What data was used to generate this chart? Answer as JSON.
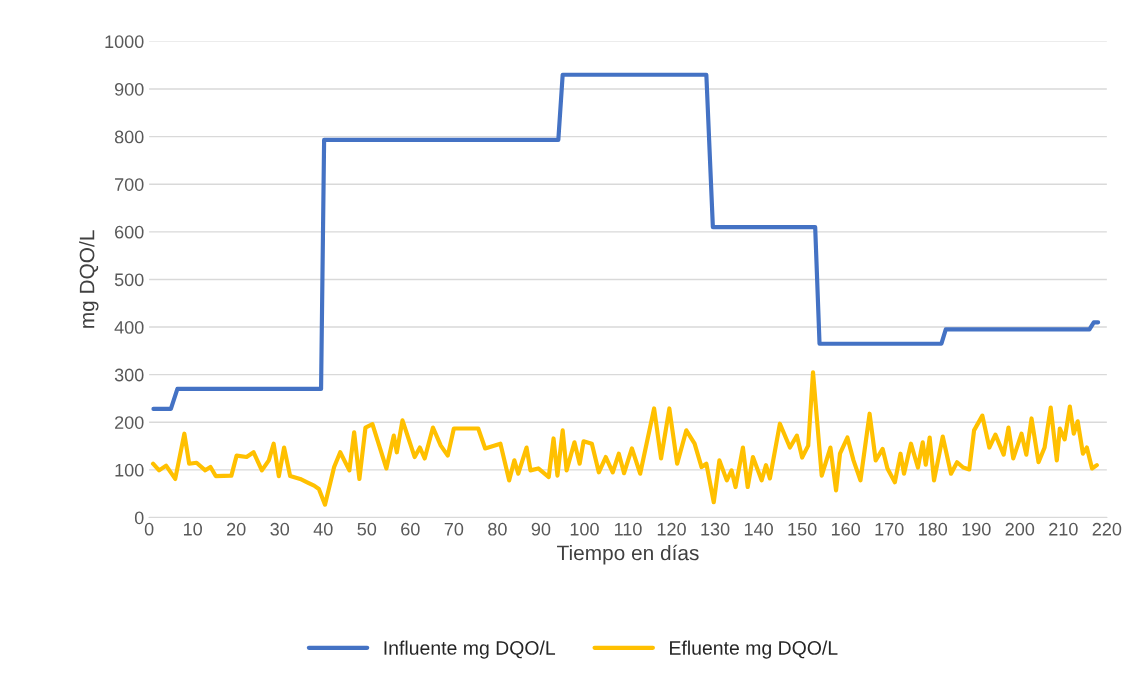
{
  "chart_data": {
    "type": "line",
    "xlabel": "Tiempo en días",
    "ylabel": "mg DQO/L",
    "xlim": [
      0,
      220
    ],
    "xticks": [
      0,
      10,
      20,
      30,
      40,
      50,
      60,
      70,
      80,
      90,
      100,
      110,
      120,
      130,
      140,
      150,
      160,
      170,
      180,
      190,
      200,
      210,
      220
    ],
    "ylim": [
      0,
      1000
    ],
    "yticks": [
      0,
      100,
      200,
      300,
      400,
      500,
      600,
      700,
      800,
      900,
      1000
    ],
    "grid": "y",
    "legend": "bottom",
    "marker": "none",
    "line_style": "solid",
    "series": [
      {
        "name": "Influente mg DQO/L",
        "color": "#4472c4",
        "x": [
          1,
          5,
          6.5,
          39.5,
          40.2,
          94,
          95,
          128,
          129.5,
          153,
          154,
          182,
          183,
          216,
          217,
          218
        ],
        "values": [
          228,
          228,
          270,
          270,
          793,
          793,
          930,
          930,
          610,
          610,
          365,
          365,
          395,
          395,
          410,
          410
        ]
      },
      {
        "name": "Efluente mg DQO/L",
        "color": "#ffc000",
        "x": [
          0.9,
          2.3,
          3.9,
          6,
          8.1,
          9.2,
          10.9,
          12.9,
          14.1,
          15.3,
          18.9,
          20.1,
          22.4,
          24,
          25.9,
          27.5,
          28.6,
          29.8,
          31,
          32.4,
          34.7,
          36.3,
          37.9,
          39,
          40.4,
          42.5,
          43.9,
          46,
          47.1,
          48.3,
          49.7,
          51.3,
          54.5,
          56.2,
          56.9,
          58.2,
          61,
          62.2,
          63.3,
          65.2,
          67,
          68.6,
          70,
          75.6,
          77.2,
          80.7,
          82.7,
          83.9,
          84.8,
          86.7,
          87.6,
          89.4,
          91.8,
          92.9,
          93.8,
          95,
          95.9,
          97.7,
          98.9,
          99.8,
          101.7,
          103.3,
          104.9,
          106.5,
          107.9,
          109.1,
          110.9,
          112.8,
          116,
          117.6,
          119.5,
          121.3,
          123.4,
          125.3,
          126.9,
          128,
          129.7,
          131,
          132.7,
          133.8,
          134.7,
          136.4,
          137.5,
          138.7,
          140.7,
          141.7,
          142.6,
          144.9,
          147.2,
          148.8,
          150,
          151.4,
          152.5,
          154.5,
          156.5,
          157.8,
          158.7,
          160.4,
          161.8,
          163.4,
          165.5,
          166.9,
          168.5,
          169.6,
          171.3,
          172.6,
          173.4,
          175,
          176.6,
          177.7,
          178.4,
          179.3,
          180.3,
          182.3,
          184.2,
          185.6,
          187,
          188.4,
          189.5,
          191.4,
          193,
          194.4,
          196.3,
          197.4,
          198.5,
          200.4,
          201.5,
          202.7,
          204.3,
          205.7,
          207.1,
          208.5,
          209.2,
          210.3,
          211.5,
          212.4,
          213.3,
          214.5,
          215.4,
          216.6,
          217.7
        ],
        "values": [
          113,
          99,
          109,
          81,
          176,
          113,
          115,
          99,
          106,
          87,
          88,
          130,
          127,
          137,
          99,
          120,
          155,
          87,
          147,
          87,
          81,
          74,
          67,
          60,
          27,
          106,
          137,
          99,
          179,
          81,
          189,
          196,
          103,
          172,
          137,
          204,
          127,
          147,
          124,
          189,
          151,
          130,
          187,
          187,
          145,
          155,
          78,
          120,
          92,
          147,
          99,
          103,
          85,
          166,
          88,
          183,
          99,
          158,
          113,
          160,
          155,
          95,
          127,
          95,
          134,
          93,
          145,
          92,
          229,
          124,
          229,
          113,
          183,
          155,
          106,
          113,
          32,
          120,
          78,
          99,
          64,
          147,
          64,
          127,
          78,
          110,
          82,
          197,
          147,
          172,
          126,
          151,
          305,
          88,
          147,
          57,
          134,
          168,
          120,
          78,
          218,
          120,
          144,
          103,
          74,
          134,
          92,
          155,
          105,
          158,
          111,
          168,
          78,
          170,
          92,
          116,
          105,
          101,
          183,
          214,
          147,
          174,
          132,
          189,
          124,
          176,
          132,
          208,
          116,
          147,
          231,
          120,
          187,
          164,
          233,
          176,
          202,
          134,
          147,
          103,
          110
        ]
      }
    ]
  }
}
